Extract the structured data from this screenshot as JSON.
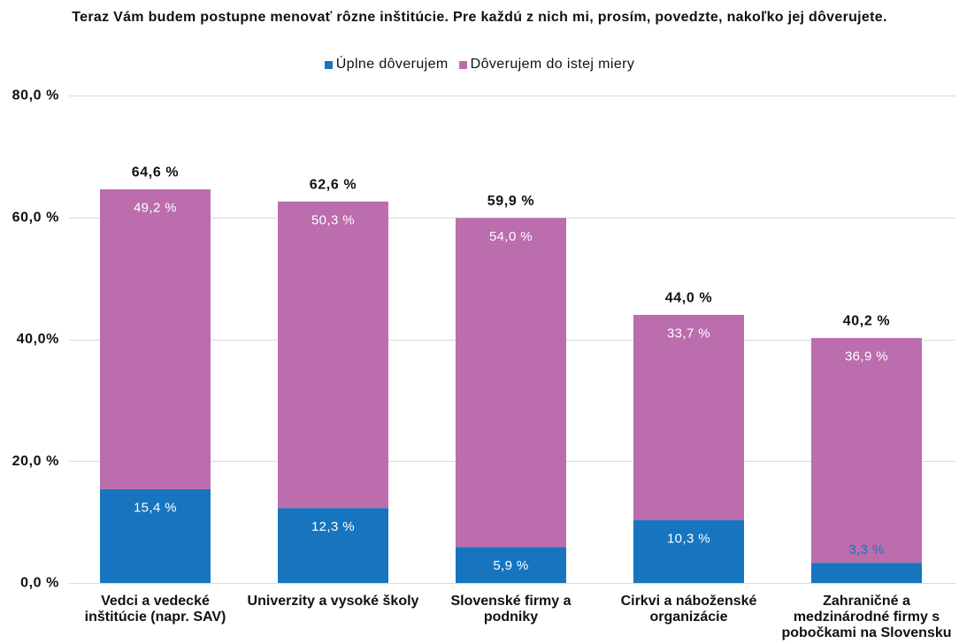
{
  "chart_data": {
    "type": "bar",
    "stacked": true,
    "title": "Teraz Vám budem postupne menovať rôzne inštitúcie. Pre každú z nich mi, prosím, povedzte, nakoľko jej dôverujete.",
    "categories": [
      "Vedci a vedecké inštitúcie (napr. SAV)",
      "Univerzity a vysoké školy",
      "Slovenské firmy a podniky",
      "Cirkvi a náboženské organizácie",
      "Zahraničné a medzinárodné firmy s pobočkami na Slovensku"
    ],
    "series": [
      {
        "name": "Úplne dôverujem",
        "color": "#1675BE",
        "values": [
          15.4,
          12.3,
          5.9,
          10.3,
          3.3
        ],
        "labels": [
          "15,4 %",
          "12,3 %",
          "5,9 %",
          "10,3 %",
          "3,3 %"
        ]
      },
      {
        "name": "Dôverujem do istej miery",
        "color": "#BB6DAD",
        "values": [
          49.2,
          50.3,
          54.0,
          33.7,
          36.9
        ],
        "labels": [
          "49,2 %",
          "50,3 %",
          "54,0 %",
          "33,7 %",
          "36,9 %"
        ]
      }
    ],
    "totals": {
      "values": [
        64.6,
        62.6,
        59.9,
        44.0,
        40.2
      ],
      "labels": [
        "64,6 %",
        "62,6 %",
        "59,9 %",
        "44,0 %",
        "40,2 %"
      ]
    },
    "ylim": [
      0,
      80
    ],
    "yticks": {
      "values": [
        0,
        20,
        40,
        60,
        80
      ],
      "labels": [
        "0,0 %",
        "20,0 %",
        "40,0%",
        "60,0 %",
        "80,0 %"
      ]
    },
    "grid": true,
    "legend": "top"
  }
}
